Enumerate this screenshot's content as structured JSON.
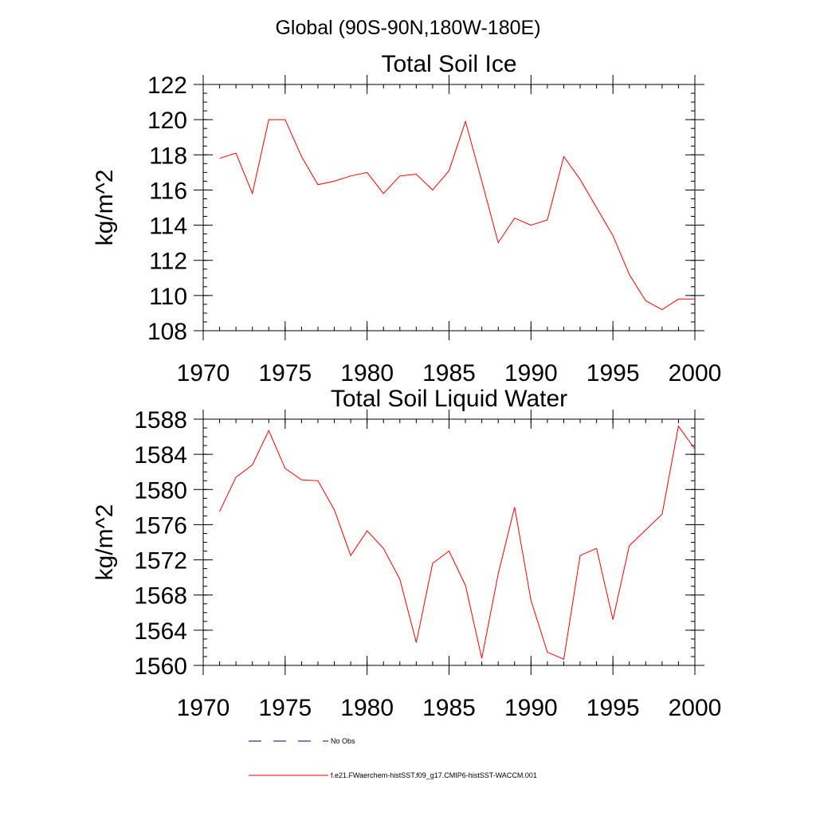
{
  "figure": {
    "title": "Global (90S-90N,180W-180E)"
  },
  "chart_data": [
    {
      "type": "line",
      "title": "Total Soil Ice",
      "xlabel": "",
      "ylabel": "kg/m^2",
      "xlim": [
        1970,
        2000
      ],
      "ylim": [
        108,
        122
      ],
      "x_ticks": [
        "1970",
        "1975",
        "1980",
        "1985",
        "1990",
        "1995",
        "2000"
      ],
      "y_ticks": [
        "108",
        "110",
        "112",
        "114",
        "116",
        "118",
        "120",
        "122"
      ],
      "x_minor_step": 1,
      "y_minor_step": 0.5,
      "grid": false,
      "series": [
        {
          "name": "f.e21.FWaerchem-histSST.f09_g17.CMIP6-histSST-WACCM.001",
          "color": "#ff0000",
          "x": [
            1971,
            1972,
            1973,
            1974,
            1975,
            1976,
            1977,
            1978,
            1979,
            1980,
            1981,
            1982,
            1983,
            1984,
            1985,
            1986,
            1987,
            1988,
            1989,
            1990,
            1991,
            1992,
            1993,
            1994,
            1995,
            1996,
            1997,
            1998,
            1999,
            2000
          ],
          "y": [
            117.8,
            118.1,
            115.8,
            120.0,
            120.0,
            117.9,
            116.3,
            116.5,
            116.8,
            117.0,
            115.8,
            116.8,
            116.9,
            116.0,
            117.1,
            119.9,
            116.5,
            113.0,
            114.4,
            114.0,
            114.3,
            117.9,
            116.6,
            115.0,
            113.4,
            111.2,
            109.7,
            109.2,
            109.8,
            109.8
          ]
        }
      ]
    },
    {
      "type": "line",
      "title": "Total Soil Liquid Water",
      "xlabel": "",
      "ylabel": "kg/m^2",
      "xlim": [
        1970,
        2000
      ],
      "ylim": [
        1560,
        1588
      ],
      "x_ticks": [
        "1970",
        "1975",
        "1980",
        "1985",
        "1990",
        "1995",
        "2000"
      ],
      "y_ticks": [
        "1560",
        "1564",
        "1568",
        "1572",
        "1576",
        "1580",
        "1584",
        "1588"
      ],
      "x_minor_step": 1,
      "y_minor_step": 1,
      "grid": false,
      "series": [
        {
          "name": "f.e21.FWaerchem-histSST.f09_g17.CMIP6-histSST-WACCM.001",
          "color": "#ff0000",
          "x": [
            1971,
            1972,
            1973,
            1974,
            1975,
            1976,
            1977,
            1978,
            1979,
            1980,
            1981,
            1982,
            1983,
            1984,
            1985,
            1986,
            1987,
            1988,
            1989,
            1990,
            1991,
            1992,
            1993,
            1994,
            1995,
            1996,
            1997,
            1998,
            1999,
            2000
          ],
          "y": [
            1577.5,
            1581.4,
            1582.8,
            1586.7,
            1582.4,
            1581.1,
            1581.0,
            1577.7,
            1572.5,
            1575.3,
            1573.3,
            1569.8,
            1562.6,
            1571.6,
            1573.0,
            1569.1,
            1560.8,
            1570.4,
            1578.0,
            1567.4,
            1561.5,
            1560.7,
            1572.5,
            1573.3,
            1565.2,
            1573.6,
            1575.4,
            1577.2,
            1587.2,
            1584.6
          ]
        }
      ]
    }
  ],
  "legend": [
    {
      "name": "No Obs",
      "color": "#000080",
      "dash": true
    },
    {
      "name": "f.e21.FWaerchem-histSST.f09_g17.CMIP6-histSST-WACCM.001",
      "color": "#ff0000",
      "dash": false
    }
  ]
}
